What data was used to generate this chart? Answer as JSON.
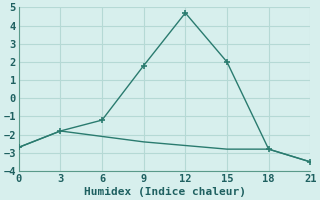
{
  "line1_x": [
    0,
    3,
    6,
    9,
    12,
    15,
    18,
    21
  ],
  "line1_y": [
    -2.7,
    -1.8,
    -1.2,
    1.8,
    4.7,
    2.0,
    -2.8,
    -3.5
  ],
  "line2_x": [
    0,
    3,
    6,
    9,
    12,
    15,
    18,
    21
  ],
  "line2_y": [
    -2.7,
    -1.8,
    -2.1,
    -2.4,
    -2.6,
    -2.8,
    -2.8,
    -3.5
  ],
  "line_color": "#2a7b6f",
  "bg_color": "#d7efed",
  "grid_color": "#b5d9d5",
  "xlabel": "Humidex (Indice chaleur)",
  "xlim": [
    0,
    21
  ],
  "ylim": [
    -4,
    5
  ],
  "xticks": [
    0,
    3,
    6,
    9,
    12,
    15,
    18,
    21
  ],
  "yticks": [
    -4,
    -3,
    -2,
    -1,
    0,
    1,
    2,
    3,
    4,
    5
  ],
  "marker": "+",
  "markersize": 5,
  "markeredgewidth": 1.2,
  "linewidth": 1.0,
  "xlabel_fontsize": 8,
  "tick_fontsize": 7.5
}
